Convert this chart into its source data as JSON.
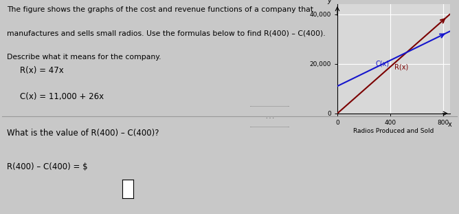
{
  "text_lines": [
    "The figure shows the graphs of the cost and revenue functions of a company that",
    "manufactures and sells small radios. Use the formulas below to find R(400) – C(400).",
    "Describe what it means for the company."
  ],
  "formula1": "R(x) = 47x",
  "formula2": "C(x) = 11,000 + 26x",
  "question_text": "What is the value of R(400) – C(400)?",
  "answer_text": "R(400) – C(400) = $",
  "xlabel": "Radios Produced and Sold",
  "y_tick_labels": [
    "0",
    "20,000",
    "40,000"
  ],
  "x_tick_labels": [
    "0",
    "400",
    "800"
  ],
  "x_ticks": [
    0,
    400,
    800
  ],
  "y_ticks": [
    0,
    20000,
    40000
  ],
  "x_max": 850,
  "y_max": 44000,
  "Rx_label": "R(x)",
  "Cx_label": "C(x)",
  "Rx_color": "#7B0000",
  "Cx_color": "#1515CC",
  "bg_color": "#C8C8C8",
  "plot_bg": "#D8D8D8",
  "grid_color": "#FFFFFF"
}
